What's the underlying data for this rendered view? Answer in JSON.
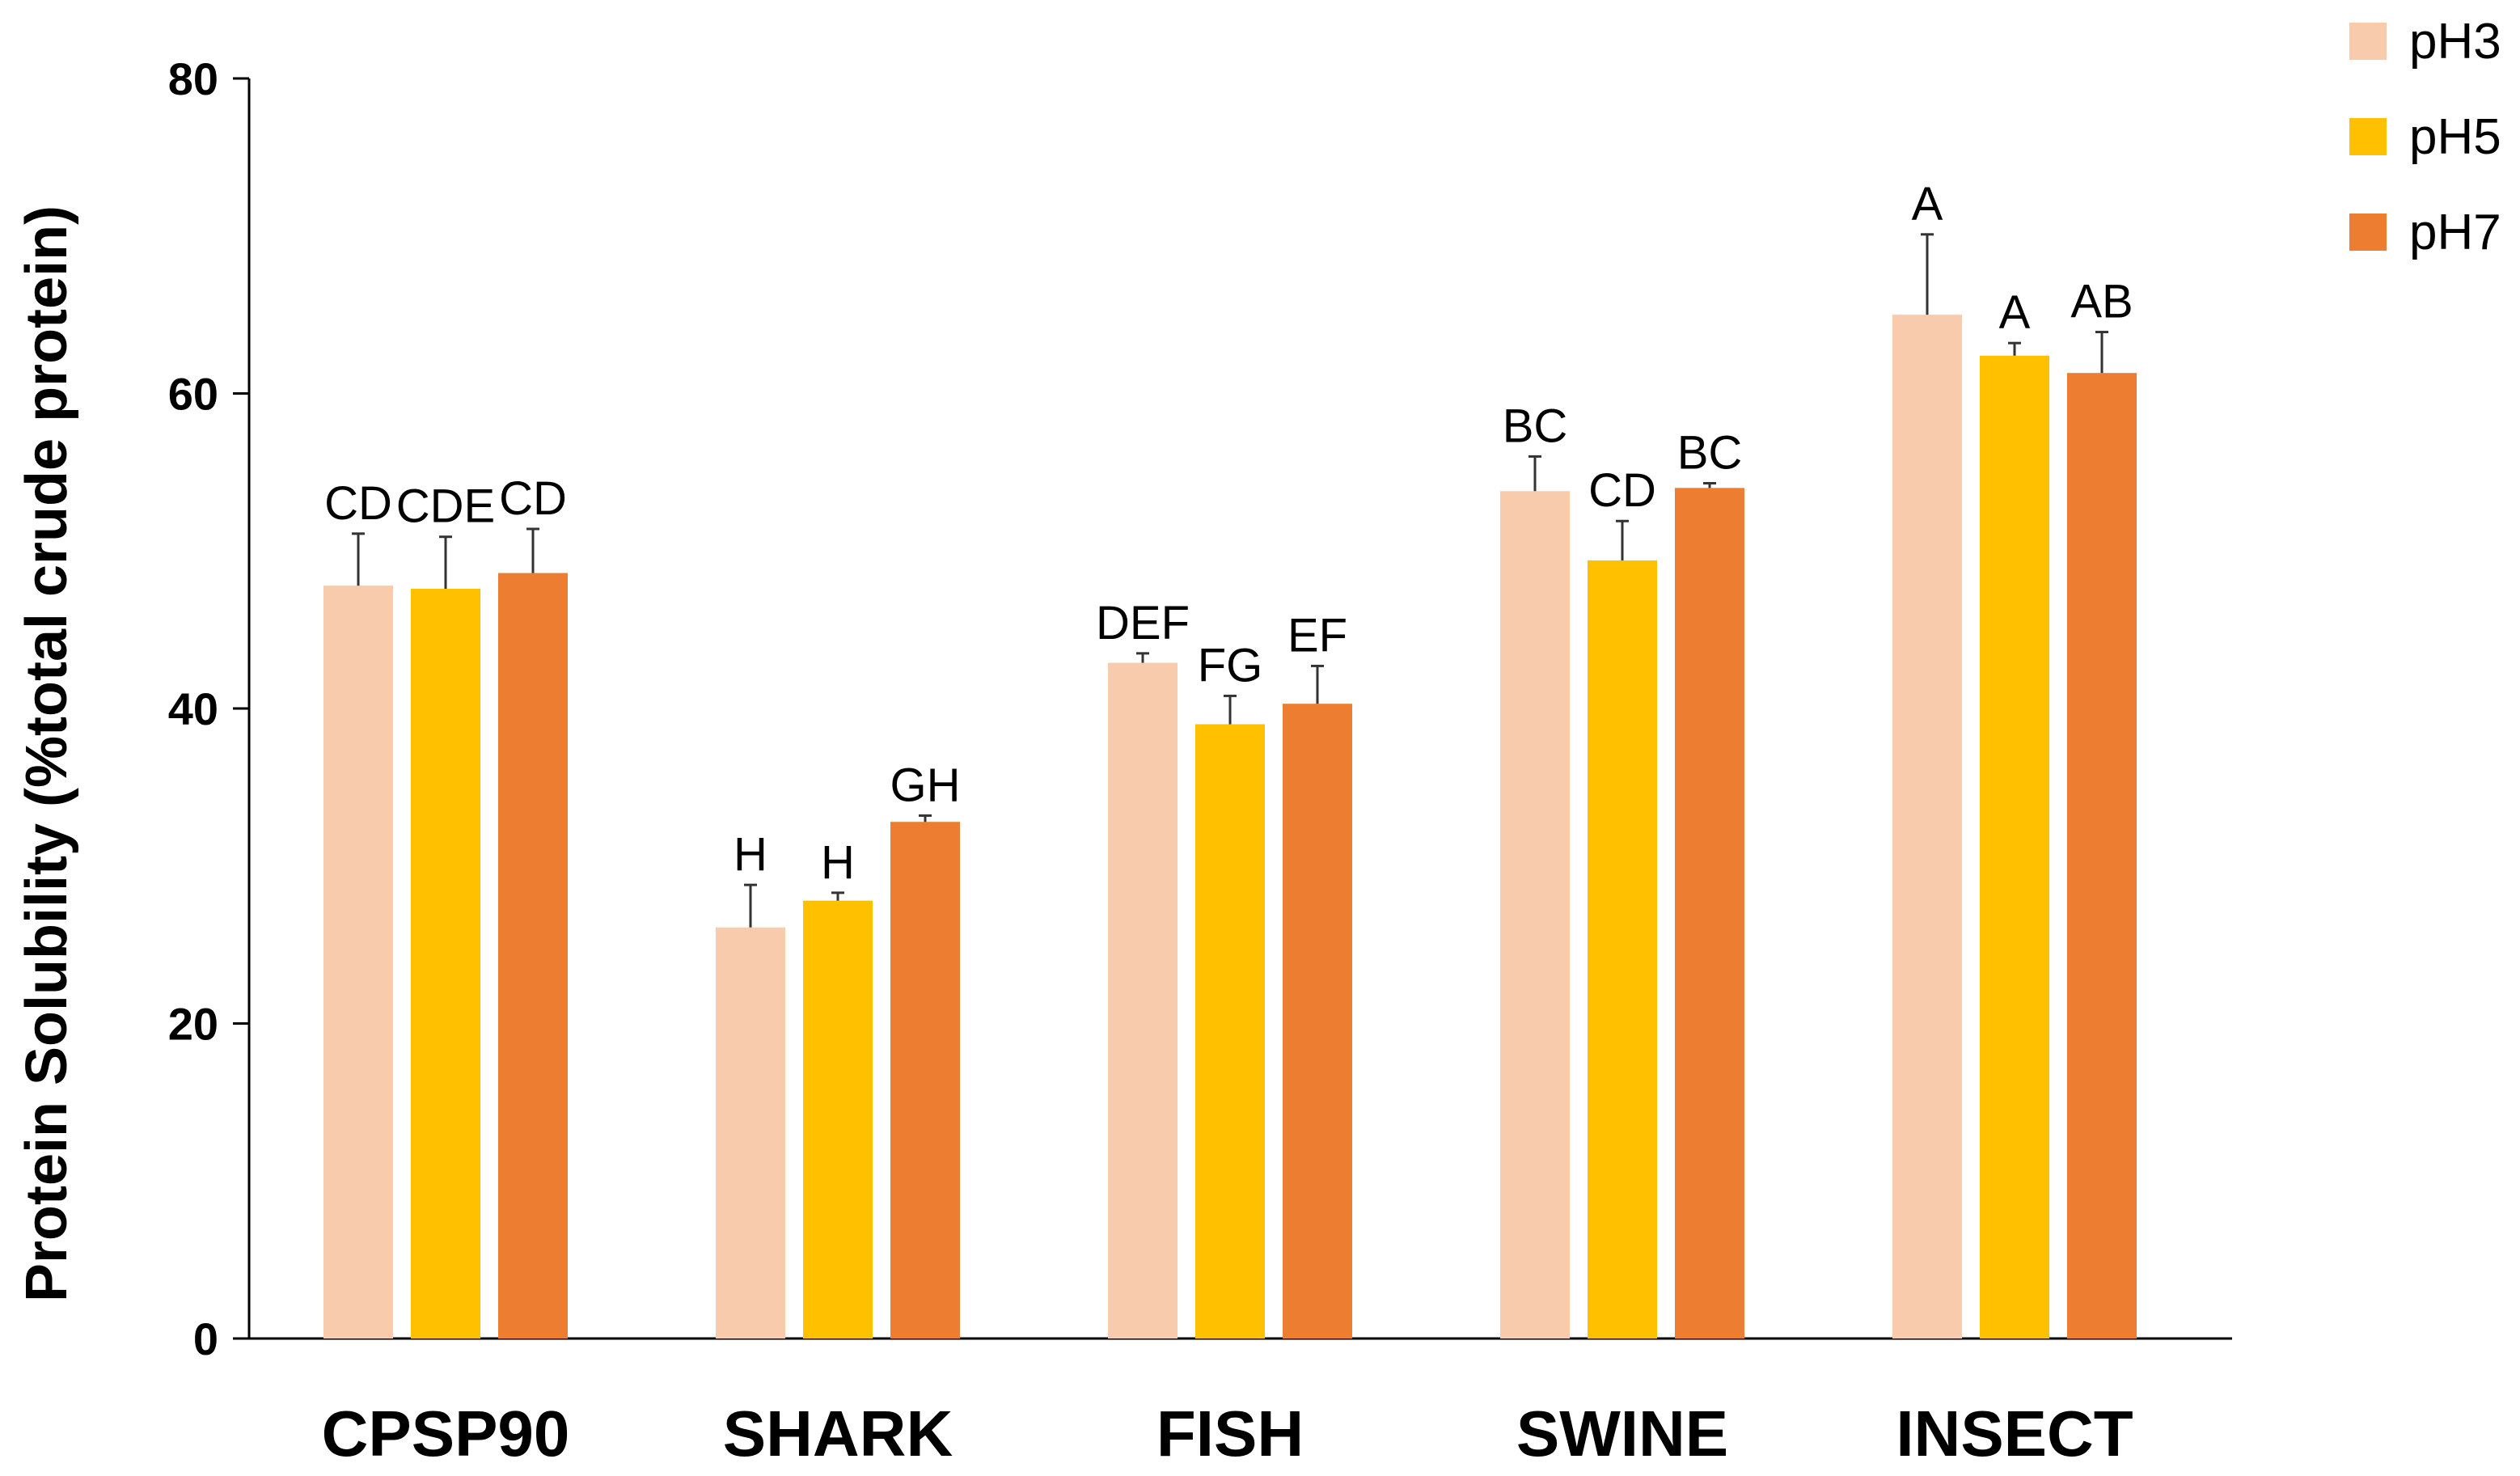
{
  "chart_data": {
    "type": "bar",
    "title": "",
    "xlabel": "",
    "ylabel": "Protein Solubility (%total crude protein)",
    "ylim": [
      0,
      80
    ],
    "yticks": [
      0,
      20,
      40,
      60,
      80
    ],
    "grid": false,
    "legend_position": "top-right",
    "categories": [
      "CPSP90",
      "SHARK",
      "FISH",
      "SWINE",
      "INSECT"
    ],
    "series": [
      {
        "name": "pH3",
        "color": "#F8CBAD",
        "values": [
          47.8,
          26.1,
          42.9,
          53.8,
          65.0
        ],
        "errors": [
          3.3,
          2.7,
          0.6,
          2.2,
          5.1
        ],
        "labels": [
          "CD",
          "H",
          "DEF",
          "BC",
          "A"
        ]
      },
      {
        "name": "pH5",
        "color": "#FFC000",
        "values": [
          47.6,
          27.8,
          39.0,
          49.4,
          62.4
        ],
        "errors": [
          3.3,
          0.5,
          1.8,
          2.5,
          0.8
        ],
        "labels": [
          "CDE",
          "H",
          "FG",
          "CD",
          "A"
        ]
      },
      {
        "name": "pH7",
        "color": "#ED7D31",
        "values": [
          48.6,
          32.8,
          40.3,
          54.0,
          61.3
        ],
        "errors": [
          2.8,
          0.4,
          2.4,
          0.3,
          2.6
        ],
        "labels": [
          "CD",
          "GH",
          "EF",
          "BC",
          "AB"
        ]
      }
    ]
  }
}
